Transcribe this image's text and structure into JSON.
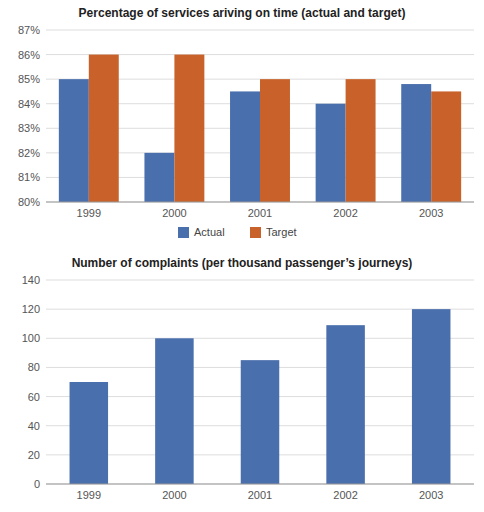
{
  "chart_data": [
    {
      "type": "bar",
      "title": "Percentage of services ariving on time (actual and target)",
      "categories": [
        "1999",
        "2000",
        "2001",
        "2002",
        "2003"
      ],
      "series": [
        {
          "name": "Actual",
          "color": "#4a6fad",
          "values": [
            85,
            82,
            84.5,
            84,
            84.8
          ]
        },
        {
          "name": "Target",
          "color": "#c8622a",
          "values": [
            86,
            86,
            85,
            85,
            84.5
          ]
        }
      ],
      "ylim": [
        80,
        87
      ],
      "yticks": [
        {
          "value": 80,
          "label": "80%"
        },
        {
          "value": 81,
          "label": "81%"
        },
        {
          "value": 82,
          "label": "82%"
        },
        {
          "value": 83,
          "label": "83%"
        },
        {
          "value": 84,
          "label": "84%"
        },
        {
          "value": 85,
          "label": "85%"
        },
        {
          "value": 86,
          "label": "86%"
        },
        {
          "value": 87,
          "label": "87%"
        }
      ],
      "grid": true,
      "legend": "bottom"
    },
    {
      "type": "bar",
      "title": "Number of complaints (per thousand passenger’s journeys)",
      "categories": [
        "1999",
        "2000",
        "2001",
        "2002",
        "2003"
      ],
      "values": [
        70,
        100,
        85,
        109,
        120
      ],
      "color": "#4a6fad",
      "ylim": [
        0,
        140
      ],
      "yticks": [
        0,
        20,
        40,
        60,
        80,
        100,
        120,
        140
      ],
      "grid": true
    }
  ]
}
